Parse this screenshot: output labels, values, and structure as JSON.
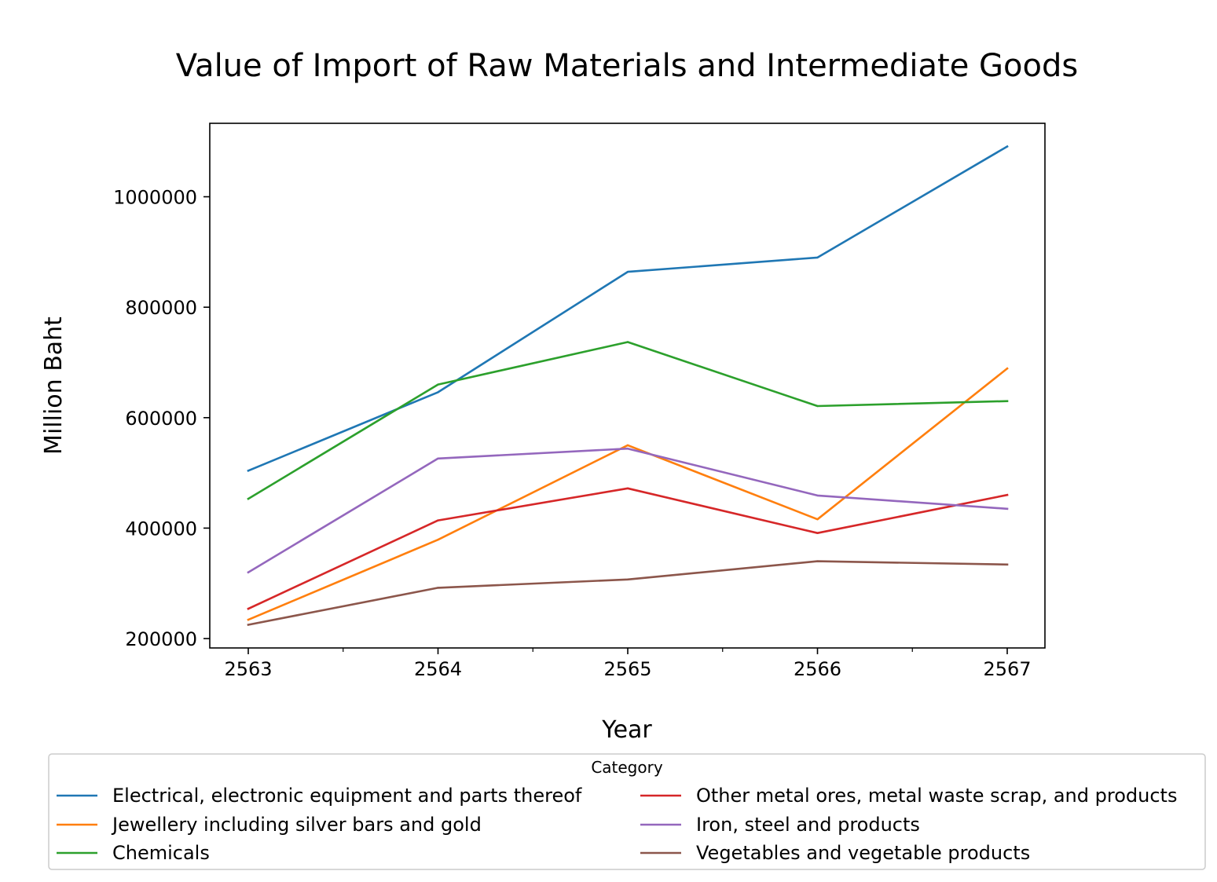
{
  "chart_data": {
    "type": "line",
    "title": "Value of Import of Raw Materials and Intermediate Goods",
    "xlabel": "Year",
    "ylabel": "Million Baht",
    "x": [
      "2563",
      "2564",
      "2565",
      "2566",
      "2567"
    ],
    "y_ticks": [
      "200000",
      "400000",
      "600000",
      "800000",
      "1000000"
    ],
    "ylim": [
      183000,
      1133000
    ],
    "grid": false,
    "legend": {
      "title": "Category",
      "placement": "bottom",
      "columns": 2
    },
    "series": [
      {
        "name": "Electrical, electronic equipment and parts thereof",
        "color": "#1f77b4",
        "values": [
          504000,
          646000,
          864000,
          890000,
          1091000
        ]
      },
      {
        "name": "Jewellery including silver bars and gold",
        "color": "#ff7f0e",
        "values": [
          234000,
          379000,
          550000,
          416000,
          689000
        ]
      },
      {
        "name": "Chemicals",
        "color": "#2ca02c",
        "values": [
          453000,
          660000,
          737000,
          621000,
          630000
        ]
      },
      {
        "name": "Other metal ores, metal waste scrap, and products",
        "color": "#d62728",
        "values": [
          254000,
          414000,
          472000,
          391000,
          460000
        ]
      },
      {
        "name": "Iron, steel and products",
        "color": "#9467bd",
        "values": [
          320000,
          526000,
          544000,
          459000,
          435000
        ]
      },
      {
        "name": "Vegetables and vegetable products",
        "color": "#8c564b",
        "values": [
          225000,
          292000,
          307000,
          340000,
          334000
        ]
      }
    ]
  }
}
